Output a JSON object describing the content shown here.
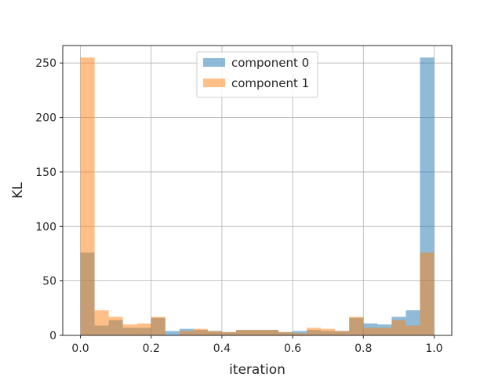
{
  "chart_data": {
    "type": "bar",
    "subtype": "overlapping-histogram",
    "title": "",
    "xlabel": "iteration",
    "ylabel": "KL",
    "xlim": [
      -0.05,
      1.05
    ],
    "ylim": [
      0,
      266
    ],
    "xticks": [
      "0.0",
      "0.2",
      "0.4",
      "0.6",
      "0.8",
      "1.0"
    ],
    "yticks": [
      "0",
      "50",
      "100",
      "150",
      "200",
      "250"
    ],
    "grid": true,
    "legend_position": "top-center",
    "bin_width": 0.04,
    "bin_starts": [
      0.0,
      0.04,
      0.08,
      0.12,
      0.16,
      0.2,
      0.24,
      0.28,
      0.32,
      0.36,
      0.4,
      0.44,
      0.48,
      0.52,
      0.56,
      0.6,
      0.64,
      0.68,
      0.72,
      0.76,
      0.8,
      0.84,
      0.88,
      0.92,
      0.96
    ],
    "alpha": 0.5,
    "series": [
      {
        "name": "component 0",
        "color": "#1f77b4",
        "values": [
          76,
          9,
          14,
          7,
          7,
          16,
          4,
          6,
          5,
          4,
          3,
          5,
          5,
          5,
          3,
          4,
          5,
          4,
          4,
          16,
          11,
          10,
          17,
          23,
          255
        ]
      },
      {
        "name": "component 1",
        "color": "#ff7f0e",
        "values": [
          255,
          23,
          17,
          10,
          11,
          17,
          0,
          4,
          6,
          4,
          3,
          5,
          5,
          5,
          3,
          2,
          7,
          6,
          4,
          17,
          7,
          7,
          14,
          9,
          76
        ]
      }
    ]
  }
}
